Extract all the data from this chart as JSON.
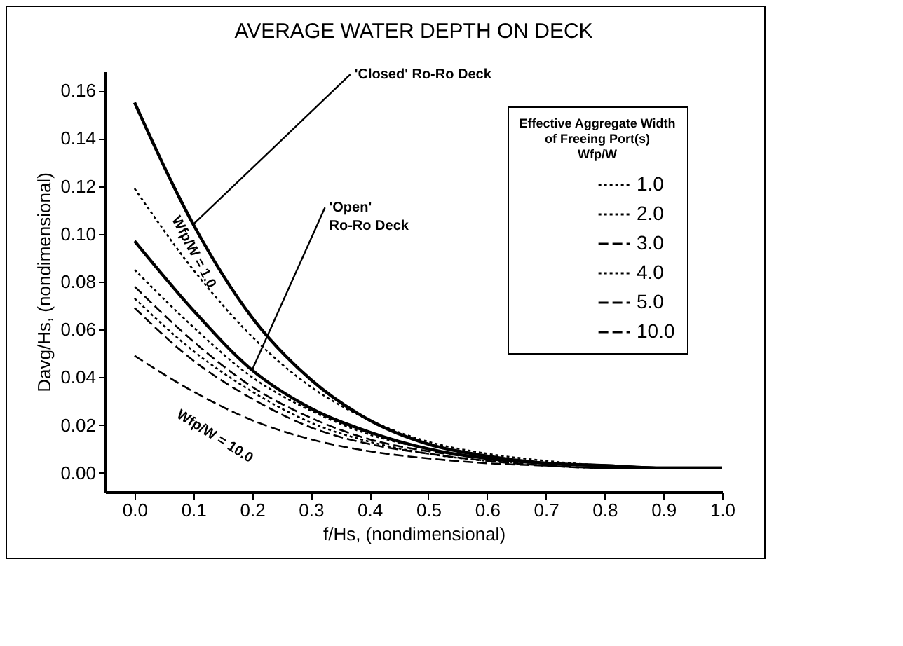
{
  "chart_data": {
    "type": "line",
    "title": "AVERAGE WATER DEPTH ON DECK",
    "xlabel": "f/Hs, (nondimensional)",
    "ylabel": "Davg/Hs, (nondimensional)",
    "legend_title": "Effective Aggregate Width\nof Freeing Port(s)\nWfp/W",
    "x": [
      0,
      0.1,
      0.2,
      0.3,
      0.4,
      0.5,
      0.6,
      0.7,
      0.8,
      0.9,
      1.0
    ],
    "series": [
      {
        "name": "'Closed' Ro-Ro Deck",
        "color": "#000000",
        "line_style": "solid",
        "values": [
          0.155,
          0.104,
          0.065,
          0.039,
          0.022,
          0.012,
          0.007,
          0.004,
          0.003,
          0.002,
          0.002
        ]
      },
      {
        "name": "'Open' Ro-Ro Deck",
        "color": "#000000",
        "line_style": "solid",
        "values": [
          0.097,
          0.068,
          0.043,
          0.027,
          0.017,
          0.01,
          0.006,
          0.004,
          0.003,
          0.002,
          0.002
        ]
      },
      {
        "name": "1.0",
        "color": "#000000",
        "line_style": "dotted",
        "values": [
          0.119,
          0.085,
          0.057,
          0.036,
          0.022,
          0.013,
          0.008,
          0.005,
          0.003,
          0.002,
          0.002
        ]
      },
      {
        "name": "2.0",
        "color": "#000000",
        "line_style": "dotted",
        "values": [
          0.085,
          0.061,
          0.04,
          0.026,
          0.016,
          0.01,
          0.006,
          0.004,
          0.003,
          0.002,
          0.002
        ]
      },
      {
        "name": "3.0",
        "color": "#000000",
        "line_style": "dashed",
        "values": [
          0.078,
          0.055,
          0.036,
          0.023,
          0.014,
          0.009,
          0.006,
          0.004,
          0.003,
          0.002,
          0.002
        ]
      },
      {
        "name": "4.0",
        "color": "#000000",
        "line_style": "dotted",
        "values": [
          0.073,
          0.051,
          0.034,
          0.021,
          0.013,
          0.008,
          0.005,
          0.004,
          0.003,
          0.002,
          0.002
        ]
      },
      {
        "name": "5.0",
        "color": "#000000",
        "line_style": "dashed",
        "values": [
          0.069,
          0.047,
          0.031,
          0.019,
          0.012,
          0.008,
          0.005,
          0.003,
          0.002,
          0.002,
          0.002
        ]
      },
      {
        "name": "10.0",
        "color": "#000000",
        "line_style": "dashed",
        "values": [
          0.049,
          0.034,
          0.022,
          0.014,
          0.009,
          0.006,
          0.004,
          0.003,
          0.002,
          0.002,
          0.002
        ]
      }
    ],
    "annotations": [
      "Wfp/W = 1.0",
      "Wfp/W = 10.0"
    ],
    "xlim": [
      -0.05,
      1.0
    ],
    "ylim": [
      -0.008,
      0.168
    ],
    "xticks": [
      {
        "value": 0,
        "label": "0.0"
      },
      0.1,
      0.2,
      0.3,
      0.4,
      0.5,
      0.6,
      0.7,
      0.8,
      0.9,
      {
        "value": 1,
        "label": "1.0"
      }
    ],
    "yticks": [
      {
        "value": 0,
        "label": "0.00"
      },
      0.02,
      0.04,
      0.06,
      0.08,
      {
        "value": 0.1,
        "label": "0.10"
      },
      0.12,
      0.14,
      0.16
    ],
    "legend": "top right",
    "grid": false
  }
}
